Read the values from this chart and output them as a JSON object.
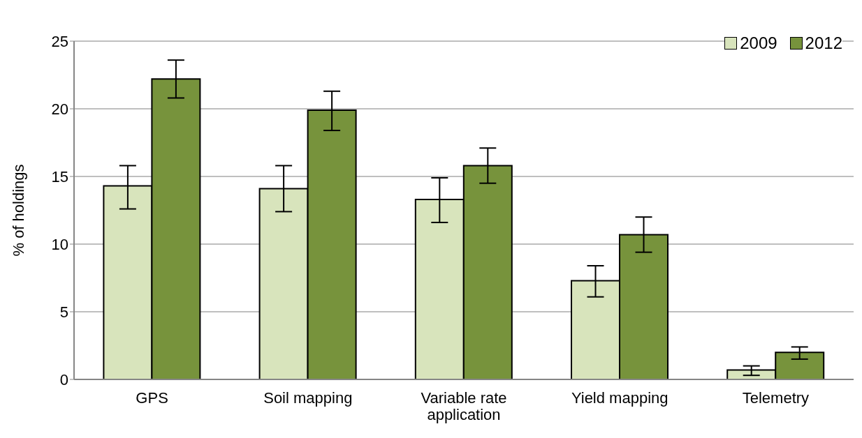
{
  "chart_data": {
    "type": "bar",
    "ylabel": "% of holdings",
    "categories": [
      "GPS",
      "Soil mapping",
      "Variable rate application",
      "Yield mapping",
      "Telemetry"
    ],
    "series": [
      {
        "name": "2009",
        "color": "#d8e4bc",
        "values": [
          14.3,
          14.1,
          13.3,
          7.3,
          0.7
        ],
        "errors": [
          [
            12.6,
            15.8
          ],
          [
            12.4,
            15.8
          ],
          [
            11.6,
            14.9
          ],
          [
            6.1,
            8.4
          ],
          [
            0.3,
            1.0
          ]
        ]
      },
      {
        "name": "2012",
        "color": "#77933c",
        "values": [
          22.2,
          19.9,
          15.8,
          10.7,
          2.0
        ],
        "errors": [
          [
            20.8,
            23.6
          ],
          [
            18.4,
            21.3
          ],
          [
            14.5,
            17.1
          ],
          [
            9.4,
            12.0
          ],
          [
            1.5,
            2.4
          ]
        ]
      }
    ],
    "ylim": [
      0,
      25
    ],
    "yticks": [
      0,
      5,
      10,
      15,
      20,
      25
    ],
    "grid": "y",
    "legend": "top right"
  }
}
